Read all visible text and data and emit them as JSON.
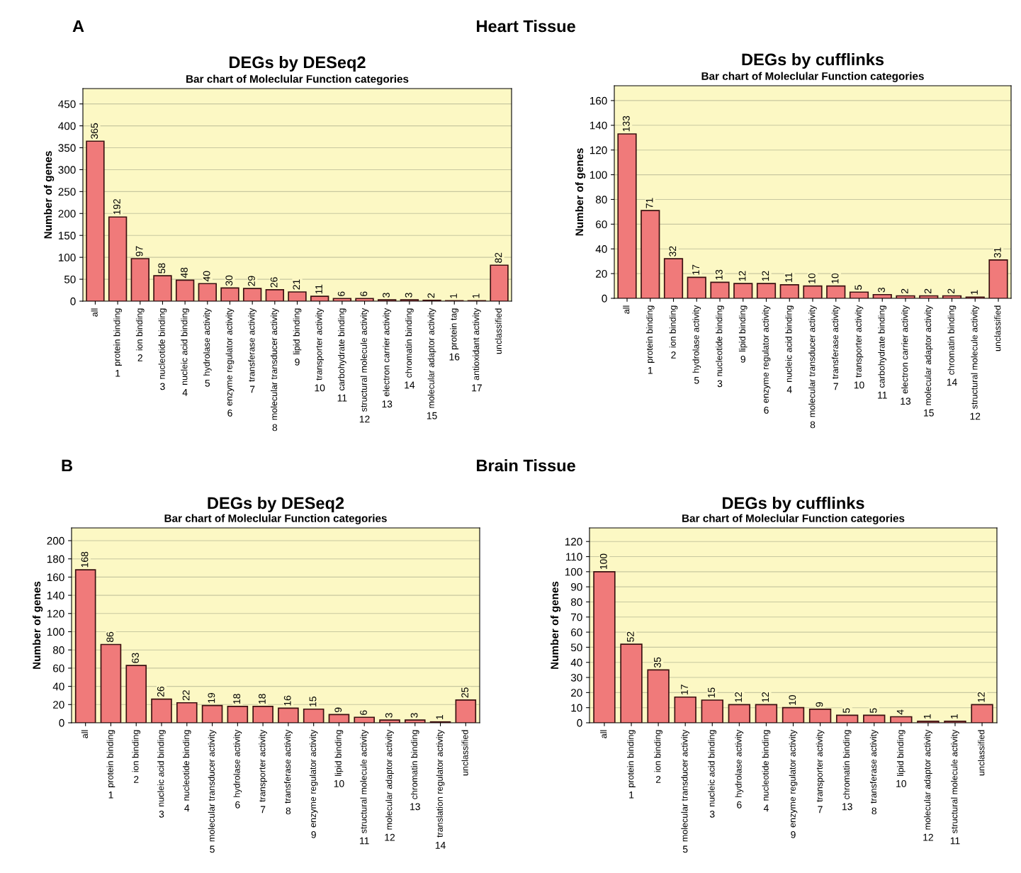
{
  "chart_data": [
    {
      "type": "bar",
      "title": "DEGs by DESeq2",
      "subtitle": "Bar chart of Moleclular Function categories",
      "ylabel": "Number of genes",
      "categories": [
        "all",
        "protein binding",
        "ion binding",
        "nucleotide binding",
        "nucleic acid binding",
        "hydrolase activity",
        "enzyme regulator activity",
        "transferase activity",
        "molecular transducer activity",
        "lipid binding",
        "transporter activity",
        "carbohydrate binding",
        "structural molecule activity",
        "electron carrier activity",
        "chromatin binding",
        "molecular adaptor activity",
        "protein tag",
        "antioxidant activity",
        "unclassified"
      ],
      "values": [
        365,
        192,
        97,
        58,
        48,
        40,
        30,
        29,
        26,
        21,
        11,
        6,
        6,
        3,
        3,
        2,
        1,
        1,
        82
      ],
      "color": "#f07a7a",
      "ylim": [
        0,
        485
      ],
      "yticks": [
        0,
        50,
        100,
        150,
        200,
        250,
        300,
        350,
        400,
        450
      ],
      "grid": "y",
      "data_labels": true,
      "annotations": [
        "A",
        "Heart Tissue",
        "1",
        "2",
        "3",
        "4",
        "5",
        "6",
        "7",
        "8",
        "9",
        "10",
        "11",
        "12",
        "13",
        "14",
        "15",
        "16",
        "17"
      ]
    },
    {
      "type": "bar",
      "title": "DEGs by cufflinks",
      "subtitle": "Bar chart of Moleclular Function categories",
      "ylabel": "Number of genes",
      "categories": [
        "all",
        "protein binding",
        "ion binding",
        "hydrolase activity",
        "nucleotide binding",
        "lipid binding",
        "enzyme regulator activity",
        "nucleic acid binding",
        "molecular transducer activity",
        "transferase activity",
        "transporter activity",
        "carbohydrate binding",
        "electron carrier activity",
        "molecular adaptor activity",
        "chromatin binding",
        "structural molecule activity",
        "unclassified"
      ],
      "values": [
        133,
        71,
        32,
        17,
        13,
        12,
        12,
        11,
        10,
        10,
        5,
        3,
        2,
        2,
        2,
        1,
        31
      ],
      "color": "#f07a7a",
      "ylim": [
        0,
        172
      ],
      "yticks": [
        0,
        20,
        40,
        60,
        80,
        100,
        120,
        140,
        160
      ],
      "grid": "y",
      "data_labels": true,
      "annotations": [
        "1",
        "2",
        "5",
        "3",
        "9",
        "6",
        "4",
        "8",
        "7",
        "10",
        "11",
        "13",
        "15",
        "14",
        "12"
      ]
    },
    {
      "type": "bar",
      "title": "DEGs by DESeq2",
      "subtitle": "Bar chart of Moleclular Function categories",
      "ylabel": "Number of genes",
      "categories": [
        "all",
        "protein binding",
        "ion binding",
        "nucleic acid binding",
        "nucleotide binding",
        "molecular transducer activity",
        "hydrolase activity",
        "transporter activity",
        "transferase activity",
        "enzyme regulator activity",
        "lipid binding",
        "structural molecule activity",
        "molecular adaptor activity",
        "chromatin binding",
        "translation regulator activity",
        "unclassified"
      ],
      "values": [
        168,
        86,
        63,
        26,
        22,
        19,
        18,
        18,
        16,
        15,
        9,
        6,
        3,
        3,
        1,
        25
      ],
      "color": "#f07a7a",
      "ylim": [
        0,
        214
      ],
      "yticks": [
        0,
        20,
        40,
        60,
        80,
        100,
        120,
        140,
        160,
        180,
        200
      ],
      "grid": "y",
      "data_labels": true,
      "annotations": [
        "B",
        "Brain Tissue",
        "1",
        "2",
        "3",
        "4",
        "5",
        "6",
        "7",
        "8",
        "9",
        "10",
        "11",
        "12",
        "13",
        "14"
      ]
    },
    {
      "type": "bar",
      "title": "DEGs by cufflinks",
      "subtitle": "Bar chart of Moleclular Function categories",
      "ylabel": "Number of genes",
      "categories": [
        "all",
        "protein binding",
        "ion binding",
        "molecular transducer activity",
        "nucleic acid binding",
        "hydrolase activity",
        "nucleotide binding",
        "enzyme regulator activity",
        "transporter activity",
        "chromatin binding",
        "transferase activity",
        "lipid binding",
        "molecular adaptor activity",
        "structural molecule activity",
        "unclassified"
      ],
      "values": [
        100,
        52,
        35,
        17,
        15,
        12,
        12,
        10,
        9,
        5,
        5,
        4,
        1,
        1,
        12
      ],
      "color": "#f07a7a",
      "ylim": [
        0,
        129
      ],
      "yticks": [
        0,
        10,
        20,
        30,
        40,
        50,
        60,
        70,
        80,
        90,
        100,
        110,
        120
      ],
      "grid": "y",
      "data_labels": true,
      "annotations": [
        "1",
        "2",
        "5",
        "3",
        "6",
        "4",
        "9",
        "7",
        "13",
        "8",
        "10",
        "12",
        "11"
      ]
    }
  ]
}
